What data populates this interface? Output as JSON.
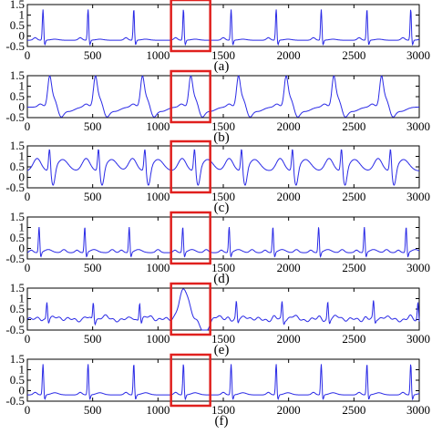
{
  "figure": {
    "highlight_color": "#e0201e",
    "signal_color": "#2a2ae6",
    "highlight_range": [
      1100,
      1400
    ]
  },
  "chart_data": [
    {
      "type": "line",
      "label": "(a)",
      "xlim": [
        0,
        3000
      ],
      "ylim": [
        -0.5,
        1.5
      ],
      "xticks": [
        0,
        500,
        1000,
        1500,
        2000,
        2500,
        3000
      ],
      "xticklabels": [
        "0",
        "500",
        "1000",
        "1500",
        "2000",
        "2500",
        "3000"
      ],
      "yticks": [
        1.5,
        1,
        0.5,
        0,
        -0.5
      ],
      "yticklabels": [
        "1.5",
        "1",
        "0.5",
        "0",
        "-0.5"
      ],
      "series": [
        {
          "kind": "ecg-narrow",
          "baseline": -0.2,
          "beats": [
            120,
            465,
            815,
            1195,
            1560,
            1905,
            2250,
            2600,
            2935
          ],
          "r_peak": 1.3,
          "s_trough": -0.45,
          "t_height": 0.05,
          "t_offset": 90
        }
      ]
    },
    {
      "type": "line",
      "label": "(b)",
      "xlim": [
        0,
        3000
      ],
      "ylim": [
        -0.5,
        1.5
      ],
      "xticks": [
        0,
        500,
        1000,
        1500,
        2000,
        2500,
        3000
      ],
      "xticklabels": [
        "0",
        "500",
        "1000",
        "1500",
        "2000",
        "2500",
        "3000"
      ],
      "yticks": [
        1.5,
        1,
        0.5,
        0,
        -0.5
      ],
      "yticklabels": [
        "1.5",
        "1",
        "0.5",
        "0",
        "-0.5"
      ],
      "series": [
        {
          "kind": "ecg-broad",
          "baseline": 0.0,
          "beats": [
            170,
            520,
            880,
            1250,
            1615,
            1980,
            2345,
            2710
          ],
          "r_peak": 1.25,
          "s_trough": -0.45
        }
      ]
    },
    {
      "type": "line",
      "label": "(c)",
      "xlim": [
        0,
        3000
      ],
      "ylim": [
        -0.5,
        1.5
      ],
      "xticks": [
        0,
        500,
        1000,
        1500,
        2000,
        2500,
        3000
      ],
      "xticklabels": [
        "0",
        "500",
        "1000",
        "1500",
        "2000",
        "2500",
        "3000"
      ],
      "yticks": [
        1.5,
        1,
        0.5,
        0,
        -0.5
      ],
      "yticklabels": [
        "1.5",
        "1",
        "0.5",
        "0",
        "-0.5"
      ],
      "series": [
        {
          "kind": "ecg-biphasic",
          "baseline": 0.3,
          "beats": [
            170,
            545,
            900,
            1280,
            1640,
            2030,
            2405,
            2780
          ],
          "r_peak": 1.4,
          "s_trough": -0.5
        }
      ]
    },
    {
      "type": "line",
      "label": "(d)",
      "xlim": [
        0,
        3000
      ],
      "ylim": [
        -0.5,
        1.5
      ],
      "xticks": [
        0,
        500,
        1000,
        1500,
        2000,
        2500,
        3000
      ],
      "xticklabels": [
        "0",
        "500",
        "1000",
        "1500",
        "2000",
        "2500",
        "3000"
      ],
      "yticks": [
        1.5,
        1,
        0.5,
        0,
        -0.5
      ],
      "yticklabels": [
        "1.5",
        "1",
        "0.5",
        "0",
        "-0.5"
      ],
      "series": [
        {
          "kind": "ecg-narrow",
          "baseline": -0.2,
          "beats": [
            90,
            440,
            780,
            1190,
            1545,
            1880,
            2230,
            2580,
            2900
          ],
          "r_peak": 1.05,
          "s_trough": -0.45,
          "t_height": 0.15,
          "t_offset": 70,
          "extra_p": [
            280,
            650,
            1000,
            1370,
            1720,
            2060,
            2410,
            2750
          ]
        }
      ]
    },
    {
      "type": "line",
      "label": "(e)",
      "xlim": [
        0,
        3000
      ],
      "ylim": [
        -0.5,
        1.5
      ],
      "xticks": [
        0,
        500,
        1000,
        1500,
        2000,
        2500,
        3000
      ],
      "xticklabels": [
        "0",
        "500",
        "1000",
        "1500",
        "2000",
        "2500",
        "3000"
      ],
      "yticks": [
        1.5,
        1,
        0.5,
        0,
        -0.5
      ],
      "yticklabels": [
        "1.5",
        "1",
        "0.5",
        "0",
        "-0.5"
      ],
      "series": [
        {
          "kind": "ecg-pvc",
          "baseline": 0.0,
          "beats": [
            150,
            505,
            860,
            1600,
            1950,
            2300,
            2650,
            2990
          ],
          "r_peak": 0.85,
          "s_trough": -0.2,
          "t_height": 0.15,
          "t_offset": 80,
          "pvc": {
            "start": 1140,
            "peak": 1.4,
            "end": 1400,
            "trough": -0.65
          }
        }
      ]
    },
    {
      "type": "line",
      "label": "(f)",
      "xlim": [
        0,
        3000
      ],
      "ylim": [
        -0.5,
        1.5
      ],
      "xticks": [
        0,
        500,
        1000,
        1500,
        2000,
        2500,
        3000
      ],
      "xticklabels": [
        "0",
        "500",
        "1000",
        "1500",
        "2000",
        "2500",
        "3000"
      ],
      "yticks": [
        1.5,
        1,
        0.5,
        0,
        -0.5
      ],
      "yticklabels": [
        "1.5",
        "1",
        "0.5",
        "0",
        "-0.5"
      ],
      "series": [
        {
          "kind": "ecg-narrow",
          "baseline": -0.2,
          "beats": [
            120,
            465,
            815,
            1195,
            1560,
            1905,
            2250,
            2600,
            2935
          ],
          "r_peak": 1.3,
          "s_trough": -0.45,
          "t_height": 0.1,
          "t_offset": 90
        }
      ]
    }
  ]
}
